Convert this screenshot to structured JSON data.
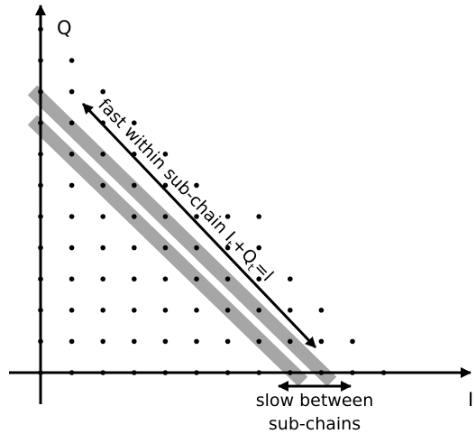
{
  "labels": {
    "y_axis": "Q",
    "x_axis": "I",
    "fast_prefix": "fast within sub-chain ",
    "fast_I": "I",
    "fast_t1": "t",
    "fast_plus": "+Q",
    "fast_t2": "t",
    "fast_eq": "=l",
    "slow_line1": "slow between",
    "slow_line2": "sub-chains"
  },
  "lattice": {
    "columns": [
      {
        "i": 0,
        "max_q": 11
      },
      {
        "i": 1,
        "max_q": 10
      },
      {
        "i": 2,
        "max_q": 9
      },
      {
        "i": 3,
        "max_q": 8
      },
      {
        "i": 4,
        "max_q": 7
      },
      {
        "i": 5,
        "max_q": 6
      },
      {
        "i": 6,
        "max_q": 5
      },
      {
        "i": 7,
        "max_q": 5
      },
      {
        "i": 8,
        "max_q": 3
      },
      {
        "i": 9,
        "max_q": 2
      },
      {
        "i": 10,
        "max_q": 1
      },
      {
        "i": 11,
        "max_q": 0
      }
    ]
  },
  "colors": {
    "stroke": "#000000",
    "dots": "#000000",
    "bands": "#a6a6a6"
  }
}
